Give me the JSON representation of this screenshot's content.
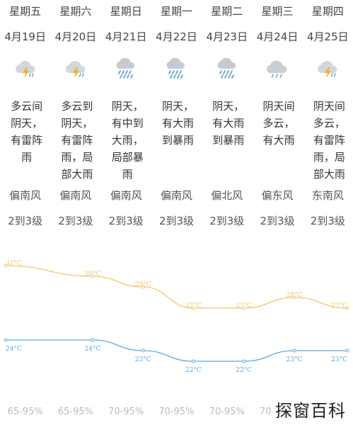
{
  "forecast": [
    {
      "day": "星期五",
      "date": "4月19日",
      "icon": "thunder-shower-icon",
      "desc": "多云间阴天，有雷阵雨",
      "wind_dir": "偏南风",
      "wind_level": "2到3级",
      "humidity": "65-95%"
    },
    {
      "day": "星期六",
      "date": "4月20日",
      "icon": "thunder-shower-icon",
      "desc": "多云到阴天，有雷阵雨，局部大雨",
      "wind_dir": "偏南风",
      "wind_level": "2到3级",
      "humidity": "65-95%"
    },
    {
      "day": "星期日",
      "date": "4月21日",
      "icon": "heavy-rain-icon",
      "desc": "阴天，有中到大雨，局部暴雨",
      "wind_dir": "偏南风",
      "wind_level": "2到3级",
      "humidity": "70-95%"
    },
    {
      "day": "星期一",
      "date": "4月22日",
      "icon": "heavy-rain-icon",
      "desc": "阴天，有大雨到暴雨",
      "wind_dir": "偏南风",
      "wind_level": "2到3级",
      "humidity": "70-95%"
    },
    {
      "day": "星期二",
      "date": "4月23日",
      "icon": "heavy-rain-icon",
      "desc": "阴天，有大雨到暴雨",
      "wind_dir": "偏北风",
      "wind_level": "2到3级",
      "humidity": "70-95%"
    },
    {
      "day": "星期三",
      "date": "4月24日",
      "icon": "overcast-rain-icon",
      "desc": "阴天间多云，有大雨",
      "wind_dir": "偏东风",
      "wind_level": "2到3级",
      "humidity": "70-95%"
    },
    {
      "day": "星期四",
      "date": "4月25日",
      "icon": "thunder-shower-icon",
      "desc": "阴天间多云，有雷阵雨，局部大雨",
      "wind_dir": "东南风",
      "wind_level": "2到3级",
      "humidity": ""
    }
  ],
  "chart_data": {
    "type": "line",
    "categories": [
      "4月19日",
      "4月20日",
      "4月21日",
      "4月22日",
      "4月23日",
      "4月24日",
      "4月25日"
    ],
    "series": [
      {
        "values": [
          31,
          30,
          29,
          27,
          27,
          28,
          27
        ],
        "labels": [
          "31°C",
          "30°C",
          "29°C",
          "27°C",
          "27°C",
          "28°C",
          "27°C"
        ],
        "color": "#f5c36a"
      },
      {
        "values": [
          24,
          24,
          23,
          22,
          22,
          23,
          23
        ],
        "labels": [
          "24°C",
          "24°C",
          "23°C",
          "22°C",
          "22°C",
          "23°C",
          "23°C"
        ],
        "color": "#5aa9e6"
      }
    ],
    "ylim": [
      21,
      32
    ],
    "grid": false
  },
  "colors": {
    "high_temp": "#f5c36a",
    "low_temp": "#5aa9e6",
    "cloud": "#c9ced3",
    "lightning": "#f3b21a",
    "rain": "#6aaee0"
  },
  "watermark": "探窗百科"
}
